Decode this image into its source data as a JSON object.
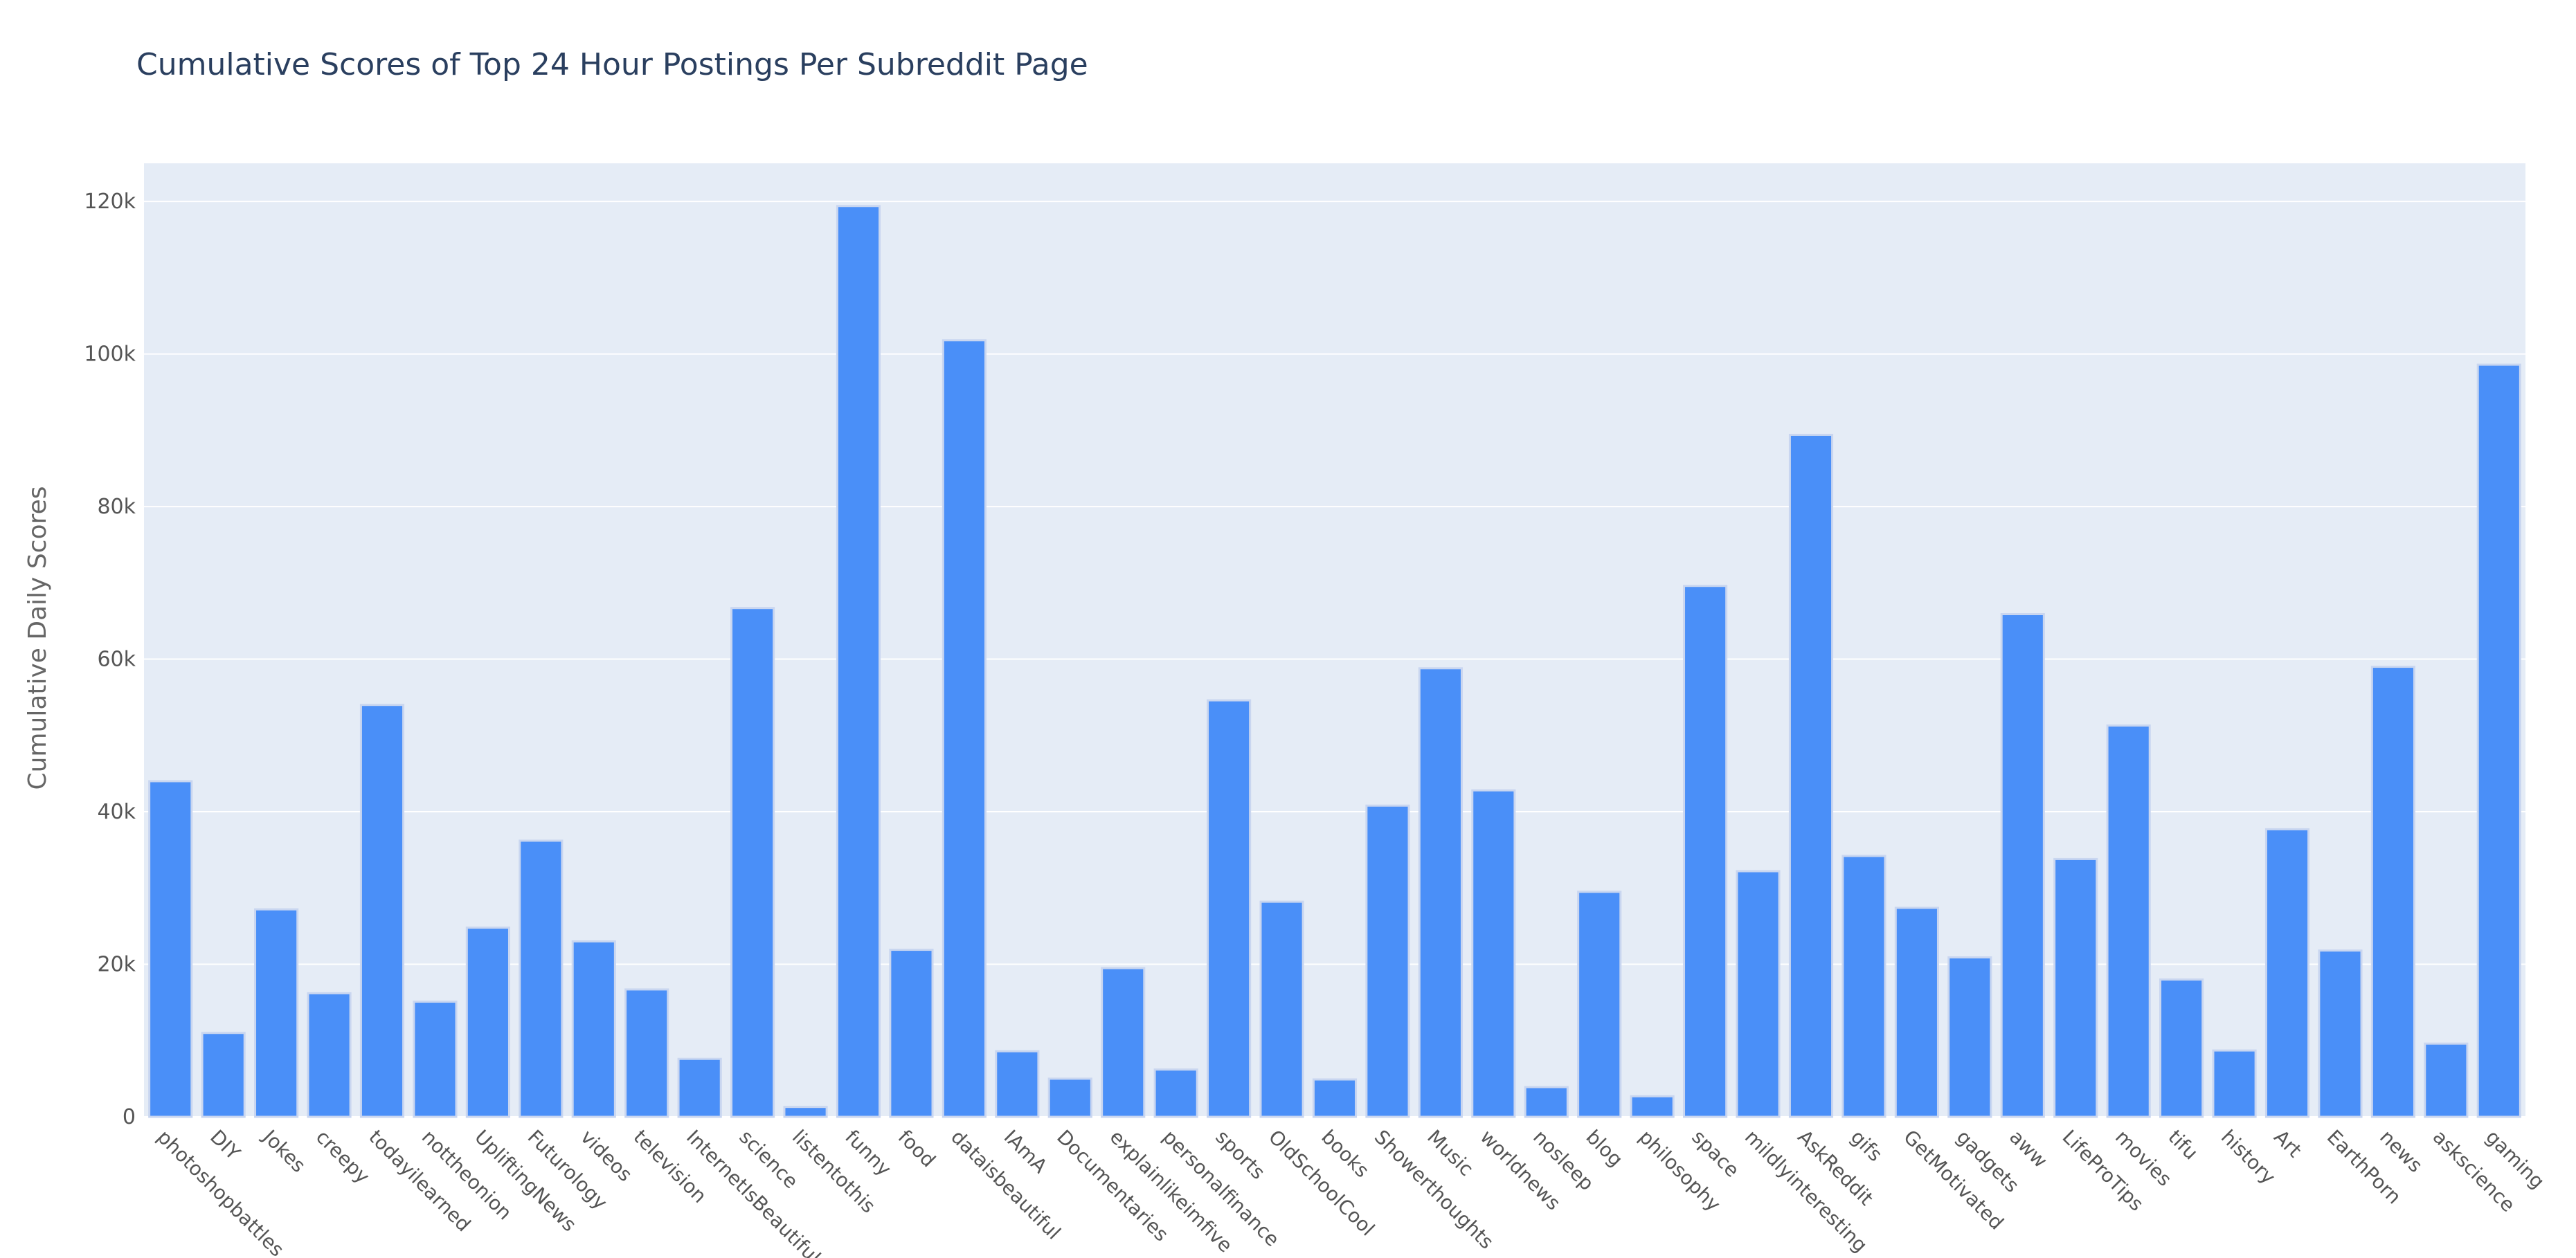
{
  "chart_data": {
    "type": "bar",
    "title": "Cumulative Scores of Top 24 Hour Postings Per Subreddit Page",
    "xlabel": "",
    "ylabel": "Cumulative Daily Scores",
    "ylim": [
      0,
      125000
    ],
    "yticks": [
      0,
      20000,
      40000,
      60000,
      80000,
      100000,
      120000
    ],
    "ytick_labels": [
      "0",
      "20k",
      "40k",
      "60k",
      "80k",
      "100k",
      "120k"
    ],
    "grid": true,
    "legend": "none",
    "bar_color": "#4a8ff8",
    "bar_outline_color": "#c9d6f0",
    "plot_bg_color": "#e5ecf6",
    "title_color": "#2a3f5f",
    "categories": [
      "photoshopbattles",
      "DIY",
      "Jokes",
      "creepy",
      "todayilearned",
      "nottheonion",
      "UpliftingNews",
      "Futurology",
      "videos",
      "television",
      "InternetIsBeautiful",
      "science",
      "listentothis",
      "funny",
      "food",
      "dataisbeautiful",
      "IAmA",
      "Documentaries",
      "explainlikeimfive",
      "personalfinance",
      "sports",
      "OldSchoolCool",
      "books",
      "Showerthoughts",
      "Music",
      "worldnews",
      "nosleep",
      "blog",
      "philosophy",
      "space",
      "mildlyinteresting",
      "AskReddit",
      "gifs",
      "GetMotivated",
      "gadgets",
      "aww",
      "LifeProTips",
      "movies",
      "tifu",
      "history",
      "Art",
      "EarthPorn",
      "news",
      "askscience",
      "gaming"
    ],
    "values": [
      44000,
      11000,
      27200,
      16200,
      54000,
      15100,
      24800,
      36200,
      23000,
      16700,
      7600,
      66700,
      1300,
      119400,
      21900,
      101800,
      8600,
      5000,
      19500,
      6200,
      54600,
      28200,
      4900,
      40800,
      58800,
      42800,
      3900,
      29500,
      2700,
      69600,
      32200,
      89400,
      34200,
      27400,
      20900,
      65900,
      33800,
      51300,
      18000,
      8700,
      37700,
      21800,
      59000,
      9600,
      98600
    ]
  }
}
